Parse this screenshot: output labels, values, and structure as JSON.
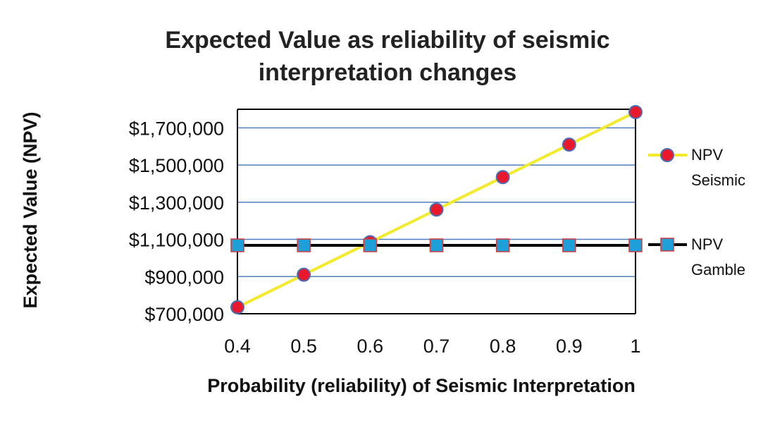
{
  "chart_data": {
    "type": "line",
    "title_lines": [
      "Expected Value as reliability of seismic",
      "interpretation changes"
    ],
    "xlabel": "Probability (reliability) of Seismic Interpretation",
    "ylabel": "Expected Value (NPV)",
    "x": [
      0.4,
      0.5,
      0.6,
      0.7,
      0.8,
      0.9,
      1
    ],
    "x_tick_labels": [
      "0.4",
      "0.5",
      "0.6",
      "0.7",
      "0.8",
      "0.9",
      "1"
    ],
    "ylim": [
      700000,
      1800000
    ],
    "y_ticks": [
      700000,
      900000,
      1100000,
      1300000,
      1500000,
      1700000
    ],
    "y_tick_labels": [
      "$700,000",
      "$900,000",
      "$1,100,000",
      "$1,300,000",
      "$1,500,000",
      "$1,700,000"
    ],
    "grid": true,
    "legend_position": "right",
    "series": [
      {
        "name_lines": [
          "NPV",
          "Seismic"
        ],
        "values": [
          735000,
          910000,
          1085000,
          1260000,
          1435000,
          1610000,
          1785000
        ],
        "line_color": "#f2ea2a",
        "marker": "circle",
        "marker_color": "#e8192c",
        "marker_edge": "#4a6fb5"
      },
      {
        "name_lines": [
          "NPV",
          "Gamble"
        ],
        "values": [
          1068000,
          1068000,
          1068000,
          1068000,
          1068000,
          1068000,
          1068000
        ],
        "line_color": "#000000",
        "marker": "square",
        "marker_color": "#1e9fd8",
        "marker_edge": "#d23a3a"
      }
    ]
  }
}
